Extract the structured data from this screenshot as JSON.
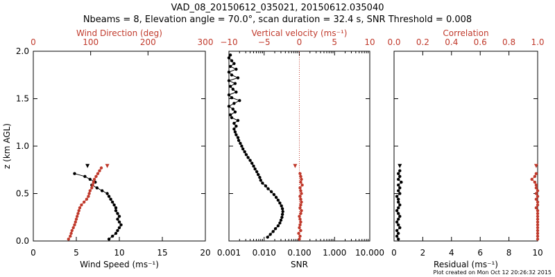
{
  "header": {
    "title_line1": "VAD_08_20150612_035021, 20150612.035040",
    "title_line2": "Nbeams = 8, Elevation angle = 70.0°, scan duration = 32.4 s, SNR Threshold = 0.008"
  },
  "footer": {
    "credit": "Plot created on Mon Oct 12 20:26:32 2015"
  },
  "colors": {
    "black": "#000000",
    "red": "#c0392b"
  },
  "chart_data": [
    {
      "type": "line",
      "panel": "wind",
      "ylabel": "z (km AGL)",
      "ylim": [
        0,
        2
      ],
      "yticks": [
        "0.0",
        "0.5",
        "1.0",
        "1.5",
        "2.0"
      ],
      "xlabel": "Wind Speed (ms⁻¹)",
      "xlim": [
        0,
        20
      ],
      "xticks": [
        "0",
        "5",
        "10",
        "15",
        "20"
      ],
      "x2label": "Wind Direction (deg)",
      "x2lim": [
        0,
        400
      ],
      "x2ticks": [
        "0",
        "100",
        "200",
        "300"
      ],
      "series": [
        {
          "color": "#000000",
          "axis": "bottom",
          "z": [
            0.02,
            0.05,
            0.08,
            0.11,
            0.14,
            0.17,
            0.2,
            0.23,
            0.26,
            0.29,
            0.32,
            0.35,
            0.38,
            0.41,
            0.44,
            0.47,
            0.5,
            0.53,
            0.56,
            0.59,
            0.62,
            0.65,
            0.68,
            0.71
          ],
          "x": [
            8.8,
            9.2,
            9.6,
            9.8,
            10.0,
            10.2,
            10.0,
            9.8,
            10.0,
            9.8,
            9.6,
            9.6,
            9.4,
            9.2,
            9.0,
            8.8,
            8.6,
            8.0,
            7.4,
            6.8,
            7.2,
            6.6,
            6.0,
            4.8
          ]
        },
        {
          "color": "#c0392b",
          "axis": "top",
          "z": [
            0.02,
            0.05,
            0.08,
            0.11,
            0.14,
            0.17,
            0.2,
            0.23,
            0.26,
            0.29,
            0.32,
            0.35,
            0.38,
            0.41,
            0.44,
            0.47,
            0.5,
            0.53,
            0.56,
            0.59,
            0.62,
            0.65,
            0.68,
            0.71,
            0.74,
            0.77
          ],
          "x": [
            82,
            86,
            88,
            90,
            93,
            96,
            98,
            100,
            102,
            104,
            106,
            108,
            112,
            118,
            124,
            128,
            130,
            132,
            136,
            138,
            140,
            142,
            146,
            150,
            154,
            158
          ]
        }
      ],
      "markers": [
        {
          "color": "#000000",
          "axis": "bottom",
          "z": 0.79,
          "x": 6.3
        },
        {
          "color": "#c0392b",
          "axis": "top",
          "z": 0.79,
          "x": 172
        }
      ]
    },
    {
      "type": "line",
      "panel": "snr",
      "ylim": [
        0,
        2
      ],
      "xlabel": "SNR",
      "xscale": "log",
      "xlim": [
        0.001,
        10
      ],
      "xticks": [
        "0.001",
        "0.010",
        "0.100",
        "1.000",
        "10.000"
      ],
      "x2label": "Vertical velocity (ms⁻¹)",
      "x2lim": [
        -10,
        10
      ],
      "x2ticks": [
        "−10",
        "−5",
        "0",
        "5",
        "10"
      ],
      "threshold_x": 0.1,
      "series": [
        {
          "color": "#000000",
          "axis": "bottom",
          "z": [
            0.04,
            0.07,
            0.1,
            0.13,
            0.16,
            0.19,
            0.22,
            0.25,
            0.28,
            0.31,
            0.34,
            0.37,
            0.4,
            0.43,
            0.46,
            0.49,
            0.52,
            0.55,
            0.58,
            0.61,
            0.64,
            0.67,
            0.7,
            0.73,
            0.76,
            0.79,
            0.82,
            0.85,
            0.88,
            0.91,
            0.94,
            0.97,
            1.0,
            1.03,
            1.06,
            1.09,
            1.12,
            1.15,
            1.18,
            1.21,
            1.24,
            1.27,
            1.3,
            1.33,
            1.36,
            1.39,
            1.42,
            1.45,
            1.48,
            1.51,
            1.54,
            1.57,
            1.6,
            1.63,
            1.66,
            1.69,
            1.72,
            1.75,
            1.78,
            1.81,
            1.84,
            1.87,
            1.9,
            1.93,
            1.96
          ],
          "x": [
            0.0125,
            0.015,
            0.018,
            0.021,
            0.025,
            0.028,
            0.03,
            0.032,
            0.033,
            0.034,
            0.033,
            0.031,
            0.028,
            0.025,
            0.022,
            0.019,
            0.016,
            0.013,
            0.011,
            0.009,
            0.008,
            0.0075,
            0.0068,
            0.0062,
            0.0055,
            0.005,
            0.0045,
            0.004,
            0.0035,
            0.0031,
            0.0028,
            0.0025,
            0.0023,
            0.0021,
            0.0019,
            0.0018,
            0.0016,
            0.0015,
            0.0014,
            0.0016,
            0.0014,
            0.0018,
            0.0012,
            0.0011,
            0.0015,
            0.0013,
            0.001,
            0.0014,
            0.002,
            0.0012,
            0.001,
            0.0016,
            0.0013,
            0.0011,
            0.0015,
            0.001,
            0.0018,
            0.0012,
            0.001,
            0.0016,
            0.0011,
            0.0014,
            0.0012,
            0.001,
            0.0011
          ]
        },
        {
          "color": "#c0392b",
          "axis": "top",
          "z": [
            0.02,
            0.05,
            0.08,
            0.11,
            0.14,
            0.17,
            0.2,
            0.23,
            0.26,
            0.29,
            0.32,
            0.35,
            0.38,
            0.41,
            0.44,
            0.47,
            0.5,
            0.53,
            0.56,
            0.59,
            0.62,
            0.65,
            0.68,
            0.71
          ],
          "x": [
            0.0,
            0.1,
            -0.1,
            0.2,
            0.0,
            0.1,
            0.2,
            0.1,
            0.0,
            0.2,
            0.3,
            0.1,
            0.2,
            0.3,
            0.2,
            0.1,
            0.3,
            0.2,
            0.1,
            0.4,
            0.2,
            0.3,
            0.2,
            0.1
          ]
        }
      ],
      "markers": [
        {
          "color": "#c0392b",
          "axis": "top",
          "z": 0.79,
          "x": -0.6
        }
      ]
    },
    {
      "type": "line",
      "panel": "residual",
      "ylim": [
        0,
        2
      ],
      "xlabel": "Residual (ms⁻¹)",
      "xlim": [
        0,
        10
      ],
      "xticks": [
        "0",
        "2",
        "4",
        "6",
        "8",
        "10"
      ],
      "x2label": "Correlation",
      "x2lim": [
        0,
        1
      ],
      "x2ticks": [
        "0.0",
        "0.2",
        "0.4",
        "0.6",
        "0.8",
        "1.0"
      ],
      "series": [
        {
          "color": "#000000",
          "axis": "bottom",
          "z": [
            0.02,
            0.05,
            0.08,
            0.11,
            0.14,
            0.17,
            0.2,
            0.23,
            0.26,
            0.29,
            0.32,
            0.35,
            0.38,
            0.41,
            0.44,
            0.47,
            0.5,
            0.53,
            0.56,
            0.59,
            0.62,
            0.65,
            0.68,
            0.71,
            0.74
          ],
          "x": [
            0.3,
            0.2,
            0.3,
            0.2,
            0.4,
            0.3,
            0.2,
            0.3,
            0.4,
            0.3,
            0.2,
            0.3,
            0.4,
            0.3,
            0.3,
            0.2,
            0.4,
            0.3,
            0.4,
            0.3,
            0.5,
            0.3,
            0.4,
            0.3,
            0.4
          ]
        },
        {
          "color": "#c0392b",
          "axis": "top",
          "z": [
            0.02,
            0.05,
            0.08,
            0.11,
            0.14,
            0.17,
            0.2,
            0.23,
            0.26,
            0.29,
            0.32,
            0.35,
            0.38,
            0.41,
            0.44,
            0.47,
            0.5,
            0.53,
            0.56,
            0.59,
            0.62,
            0.65,
            0.68,
            0.71
          ],
          "x": [
            1.0,
            1.0,
            1.0,
            1.0,
            1.0,
            1.0,
            1.0,
            1.0,
            1.0,
            1.0,
            1.0,
            0.99,
            1.0,
            1.0,
            0.99,
            1.0,
            0.99,
            1.0,
            0.99,
            0.99,
            0.98,
            0.96,
            0.98,
            0.99
          ]
        }
      ],
      "markers": [
        {
          "color": "#000000",
          "axis": "bottom",
          "z": 0.79,
          "x": 0.4
        },
        {
          "color": "#c0392b",
          "axis": "top",
          "z": 0.79,
          "x": 0.99
        }
      ]
    }
  ]
}
